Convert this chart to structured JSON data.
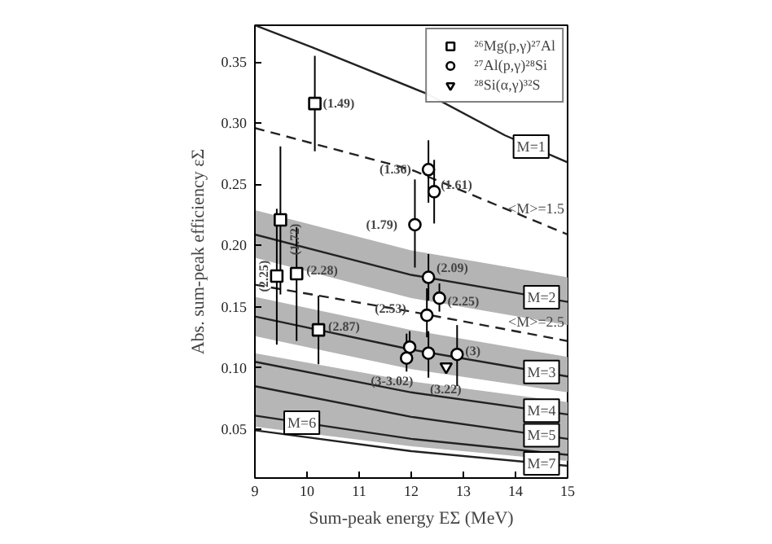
{
  "chart_data": {
    "type": "scatter",
    "xlabel": "Sum-peak energy EΣ (MeV)",
    "ylabel": "Abs. sum-peak efficiency εΣ",
    "xlim": [
      9,
      15
    ],
    "ylim": [
      0.01,
      0.38
    ],
    "xticks": [
      9,
      10,
      11,
      12,
      13,
      14,
      15
    ],
    "yticks": [
      0.05,
      {
        "value": 0.1,
        "label": "0.10"
      },
      0.15,
      {
        "value": 0.2,
        "label": "0.20"
      },
      0.25,
      {
        "value": 0.3,
        "label": "0.30"
      },
      0.35
    ],
    "grid": false,
    "legend": "top right",
    "series": [
      {
        "name": "²⁶Mg(p,γ)²⁷Al",
        "marker": "square",
        "color": "#000000",
        "x": [
          10.15,
          9.49,
          9.42,
          9.8,
          10.22
        ],
        "values": [
          0.316,
          0.221,
          0.175,
          0.177,
          0.131
        ],
        "errors": [
          [
            0.277,
            0.355
          ],
          [
            0.16,
            0.281
          ],
          [
            0.119,
            0.23
          ],
          [
            0.122,
            0.215
          ],
          [
            0.103,
            0.159
          ]
        ]
      },
      {
        "name": "²⁷Al(p,γ)²⁸Si",
        "marker": "circle",
        "color": "#000000",
        "x": [
          12.33,
          12.44,
          12.07,
          12.33,
          12.54,
          12.3,
          11.97,
          11.91,
          12.33,
          12.88
        ],
        "values": [
          0.262,
          0.244,
          0.217,
          0.174,
          0.157,
          0.143,
          0.117,
          0.108,
          0.112,
          0.111
        ],
        "errors": [
          [
            0.235,
            0.286
          ],
          [
            0.218,
            0.27
          ],
          [
            0.182,
            0.254
          ],
          [
            0.155,
            0.193
          ],
          [
            0.146,
            0.169
          ],
          [
            0.125,
            0.165
          ],
          [
            0.105,
            0.13
          ],
          [
            0.097,
            0.128
          ],
          [
            0.092,
            0.13
          ],
          [
            0.085,
            0.135
          ]
        ]
      },
      {
        "name": "²⁸Si(α,γ)³²S",
        "marker": "triangle",
        "color": "#000000",
        "x": [
          12.67
        ],
        "values": [
          0.101
        ]
      },
      {
        "name": "M=1",
        "type": "line",
        "line_style": "solid",
        "color": "#222222",
        "x": [
          9,
          10.1,
          12.3,
          13.8,
          15
        ],
        "values": [
          0.38,
          0.362,
          0.324,
          0.29,
          0.268
        ]
      },
      {
        "name": "<M>=1.5",
        "type": "line",
        "line_style": "dashed",
        "color": "#222222",
        "x": [
          9,
          12,
          15
        ],
        "values": [
          0.296,
          0.262,
          0.209
        ]
      },
      {
        "name": "M=2",
        "type": "line",
        "line_style": "solid",
        "color": "#222222",
        "x": [
          9,
          12,
          15
        ],
        "values": [
          0.209,
          0.176,
          0.154
        ],
        "lower": [
          0.19,
          0.157,
          0.135
        ],
        "upper": [
          0.229,
          0.196,
          0.174
        ]
      },
      {
        "name": "<M>=2.5",
        "type": "line",
        "line_style": "dashed",
        "color": "#222222",
        "x": [
          9,
          12,
          15
        ],
        "values": [
          0.168,
          0.146,
          0.122
        ]
      },
      {
        "name": "M=3",
        "type": "line",
        "line_style": "solid",
        "color": "#222222",
        "x": [
          9,
          12,
          15
        ],
        "values": [
          0.142,
          0.115,
          0.093
        ],
        "lower": [
          0.126,
          0.099,
          0.08
        ],
        "upper": [
          0.158,
          0.131,
          0.109
        ]
      },
      {
        "name": "M=4",
        "type": "line",
        "line_style": "solid",
        "color": "#222222",
        "x": [
          9,
          12,
          15
        ],
        "values": [
          0.105,
          0.08,
          0.062
        ]
      },
      {
        "name": "M=5",
        "type": "line",
        "line_style": "solid",
        "color": "#222222",
        "x": [
          9,
          12,
          15
        ],
        "values": [
          0.085,
          0.06,
          0.042
        ],
        "lower": [
          0.052,
          0.036,
          0.024
        ],
        "upper": [
          0.112,
          0.089,
          0.072
        ]
      },
      {
        "name": "M=6",
        "type": "line",
        "line_style": "solid",
        "color": "#222222",
        "x": [
          9,
          12,
          15
        ],
        "values": [
          0.061,
          0.042,
          0.029
        ]
      },
      {
        "name": "M=7",
        "type": "line",
        "line_style": "solid",
        "color": "#222222",
        "x": [
          9,
          12,
          15
        ],
        "values": [
          0.049,
          0.032,
          0.02
        ]
      }
    ],
    "annotations": [
      {
        "text": "(1.49)",
        "x": 10.15,
        "y": 0.316
      },
      {
        "text": "(1.72)",
        "x": 9.49,
        "y": 0.221
      },
      {
        "text": "(2.25)",
        "x": 9.42,
        "y": 0.175
      },
      {
        "text": "(2.28)",
        "x": 9.8,
        "y": 0.177
      },
      {
        "text": "(2.87)",
        "x": 10.22,
        "y": 0.131
      },
      {
        "text": "(1.36)",
        "x": 12.33,
        "y": 0.262
      },
      {
        "text": "(1.61)",
        "x": 12.44,
        "y": 0.244
      },
      {
        "text": "(1.79)",
        "x": 12.07,
        "y": 0.217
      },
      {
        "text": "(2.09)",
        "x": 12.33,
        "y": 0.174
      },
      {
        "text": "(2.25)",
        "x": 12.54,
        "y": 0.157
      },
      {
        "text": "(2.53)",
        "x": 12.3,
        "y": 0.143
      },
      {
        "text": "(3-3.02)",
        "x": 11.91,
        "y": 0.108
      },
      {
        "text": "(3.22)",
        "x": 12.67,
        "y": 0.101
      },
      {
        "text": "(3)",
        "x": 12.88,
        "y": 0.111
      }
    ]
  }
}
